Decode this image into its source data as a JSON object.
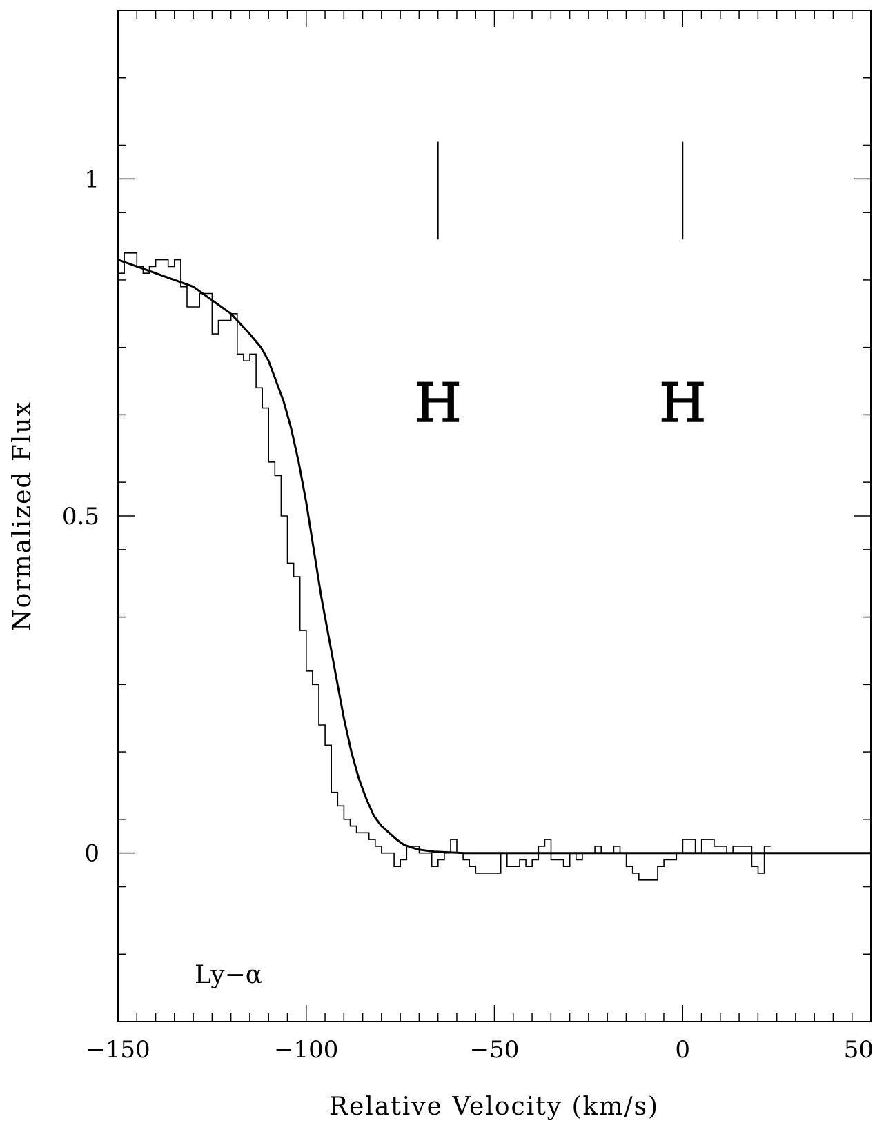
{
  "chart_data": {
    "type": "line",
    "title": "",
    "xlabel": "Relative Velocity (km/s)",
    "ylabel": "Normalized Flux",
    "xlim": [
      -150,
      50
    ],
    "ylim": [
      -0.25,
      1.25
    ],
    "x_ticks": [
      {
        "value": -150,
        "label": "−150"
      },
      {
        "value": -100,
        "label": "−100"
      },
      {
        "value": -50,
        "label": "−50"
      },
      {
        "value": 0,
        "label": "0"
      },
      {
        "value": 50,
        "label": "50"
      }
    ],
    "x_minor_step": 5,
    "y_ticks": [
      {
        "value": 0,
        "label": "0"
      },
      {
        "value": 0.5,
        "label": "0.5"
      },
      {
        "value": 1,
        "label": "1"
      }
    ],
    "y_minor_step": 0.1,
    "grid": false,
    "legend": "none",
    "annotation": "Ly−α",
    "component_markers": [
      {
        "x": -65,
        "label": "H"
      },
      {
        "x": 0,
        "label": "H"
      }
    ],
    "series": [
      {
        "style": "histogram",
        "x_start": -150,
        "bin_width": 1.667,
        "values": [
          0.86,
          0.89,
          0.89,
          0.87,
          0.86,
          0.87,
          0.88,
          0.88,
          0.87,
          0.88,
          0.84,
          0.81,
          0.81,
          0.83,
          0.83,
          0.77,
          0.79,
          0.79,
          0.8,
          0.74,
          0.73,
          0.74,
          0.69,
          0.66,
          0.58,
          0.56,
          0.5,
          0.43,
          0.41,
          0.33,
          0.27,
          0.25,
          0.19,
          0.16,
          0.09,
          0.07,
          0.05,
          0.04,
          0.03,
          0.03,
          0.02,
          0.01,
          0.0,
          0.0,
          -0.02,
          -0.01,
          0.01,
          0.01,
          0.0,
          0.0,
          -0.02,
          -0.01,
          0.0,
          0.02,
          0.0,
          -0.01,
          -0.02,
          -0.03,
          -0.03,
          -0.03,
          -0.03,
          0.0,
          -0.02,
          -0.02,
          -0.01,
          -0.02,
          -0.01,
          0.01,
          0.02,
          -0.01,
          -0.01,
          -0.02,
          0.0,
          -0.01,
          0.0,
          0.0,
          0.01,
          0.0,
          0.0,
          0.01,
          0.0,
          -0.02,
          -0.03,
          -0.04,
          -0.04,
          -0.04,
          -0.02,
          -0.01,
          -0.01,
          0.0,
          0.02,
          0.02,
          0.0,
          0.02,
          0.02,
          0.01,
          0.01,
          0.0,
          0.01,
          0.01,
          0.01,
          -0.02,
          -0.03,
          0.01
        ]
      },
      {
        "style": "curve",
        "x": [
          -150,
          -145,
          -140,
          -135,
          -130,
          -125,
          -120,
          -115,
          -112,
          -110,
          -108,
          -106,
          -104,
          -102,
          -100,
          -98,
          -96,
          -94,
          -92,
          -90,
          -88,
          -86,
          -84,
          -82,
          -80,
          -78,
          -76,
          -74,
          -72,
          -70,
          -66,
          -62,
          -58,
          -50,
          -40,
          0,
          50
        ],
        "y": [
          0.88,
          0.87,
          0.86,
          0.85,
          0.84,
          0.82,
          0.8,
          0.77,
          0.75,
          0.73,
          0.7,
          0.67,
          0.63,
          0.58,
          0.52,
          0.45,
          0.38,
          0.32,
          0.26,
          0.2,
          0.15,
          0.11,
          0.08,
          0.055,
          0.04,
          0.03,
          0.02,
          0.012,
          0.008,
          0.005,
          0.002,
          0.001,
          0.0,
          0.0,
          0.0,
          0.0,
          0.0
        ]
      }
    ]
  }
}
